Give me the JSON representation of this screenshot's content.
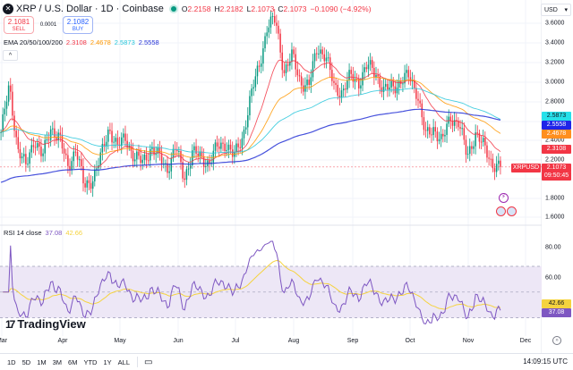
{
  "header": {
    "symbol_title": "XRP / U.S. Dollar · 1D · Coinbase",
    "logo_glyph": "✕",
    "ohlc": [
      {
        "key": "O",
        "value": "2.2158"
      },
      {
        "key": "H",
        "value": "2.2182"
      },
      {
        "key": "L",
        "value": "2.1073"
      },
      {
        "key": "C",
        "value": "2.1073"
      }
    ],
    "change": "−0.1090 (−4.92%)"
  },
  "trade": {
    "sell_price": "2.1081",
    "sell_label": "SELL",
    "spread": "0.0001",
    "buy_price": "2.1082",
    "buy_label": "BUY"
  },
  "ema_legend": {
    "label": "EMA 20/50/100/200",
    "values": [
      {
        "value": "2.3108",
        "color": "#f23645"
      },
      {
        "value": "2.4678",
        "color": "#ff9800"
      },
      {
        "value": "2.5873",
        "color": "#26c6da"
      },
      {
        "value": "2.5558",
        "color": "#2633d6"
      }
    ]
  },
  "collapse_glyph": "^",
  "currency": {
    "label": "USD",
    "chevron": "▾"
  },
  "price_axis": {
    "ticks": [
      "3.6000",
      "3.4000",
      "3.2000",
      "3.0000",
      "2.8000",
      "2.4000",
      "2.2000",
      "1.8000",
      "1.6000"
    ],
    "tags": [
      {
        "text": "2.5873",
        "bg": "#26e0ea",
        "fg": "#131722",
        "price": 2.5873
      },
      {
        "text": "2.5558",
        "bg": "#1f24e8",
        "fg": "#ffffff",
        "price": 2.5558
      },
      {
        "text": "2.4678",
        "bg": "#ff8f1f",
        "fg": "#ffffff",
        "price": 2.4678
      },
      {
        "text": "2.3108",
        "bg": "#f23645",
        "fg": "#ffffff",
        "price": 2.3108
      }
    ],
    "last_price": "2.1073",
    "countdown": "09:50:45",
    "symbol_tag": "XRPUSD"
  },
  "rsi": {
    "label": "RSI 14 close",
    "value": "37.08",
    "value_color": "#7e57c2",
    "ma_value": "42.66",
    "ma_color": "#f5d33f",
    "ticks": [
      "80.00",
      "60.00"
    ]
  },
  "time_axis": [
    "Mar",
    "Apr",
    "May",
    "Jun",
    "Jul",
    "Aug",
    "Sep",
    "Oct",
    "Nov",
    "Dec"
  ],
  "bottom_bar": {
    "ranges": [
      "1D",
      "5D",
      "1M",
      "3M",
      "6M",
      "YTD",
      "1Y",
      "ALL"
    ],
    "clock": "14:09:15 UTC"
  },
  "branding": {
    "name": "TradingView",
    "mark": "17"
  },
  "colors": {
    "up": "#089981",
    "down": "#f23645",
    "grid": "#f0f3fa",
    "rsi_band": "#ede7f6"
  },
  "chart_data": {
    "type": "candlestick",
    "title": "XRP / U.S. Dollar · 1D · Coinbase",
    "ylabel": "USD",
    "ylim": [
      1.55,
      3.72
    ],
    "x_labels": [
      "Mar",
      "Apr",
      "May",
      "Jun",
      "Jul",
      "Aug",
      "Sep",
      "Oct",
      "Nov",
      "Dec"
    ],
    "close_path": [
      2.45,
      2.9,
      2.3,
      2.1,
      2.4,
      2.2,
      2.5,
      2.4,
      2.1,
      2.3,
      1.9,
      2.0,
      2.2,
      2.5,
      2.3,
      2.4,
      2.2,
      2.15,
      2.3,
      2.2,
      2.1,
      2.3,
      2.0,
      2.25,
      2.2,
      2.15,
      2.3,
      2.35,
      2.2,
      2.4,
      2.8,
      3.1,
      3.5,
      3.55,
      3.05,
      3.2,
      2.95,
      2.9,
      3.3,
      3.2,
      2.9,
      2.85,
      3.0,
      2.95,
      3.1,
      3.05,
      2.85,
      2.9,
      2.95,
      3.0,
      2.85,
      2.4,
      2.5,
      2.35,
      2.6,
      2.55,
      2.2,
      2.45,
      2.3,
      2.15,
      2.1
    ],
    "ema": [
      {
        "name": "EMA 20",
        "last": 2.3108,
        "color": "#f23645"
      },
      {
        "name": "EMA 50",
        "last": 2.4678,
        "color": "#ff9800"
      },
      {
        "name": "EMA 100",
        "last": 2.5873,
        "color": "#26c6da"
      },
      {
        "name": "EMA 200",
        "last": 2.5558,
        "color": "#2633d6"
      }
    ],
    "rsi": {
      "period": 14,
      "last": 37.08,
      "ma_last": 42.66,
      "bands": [
        30,
        50,
        70
      ],
      "ylim": [
        20,
        95
      ]
    }
  }
}
